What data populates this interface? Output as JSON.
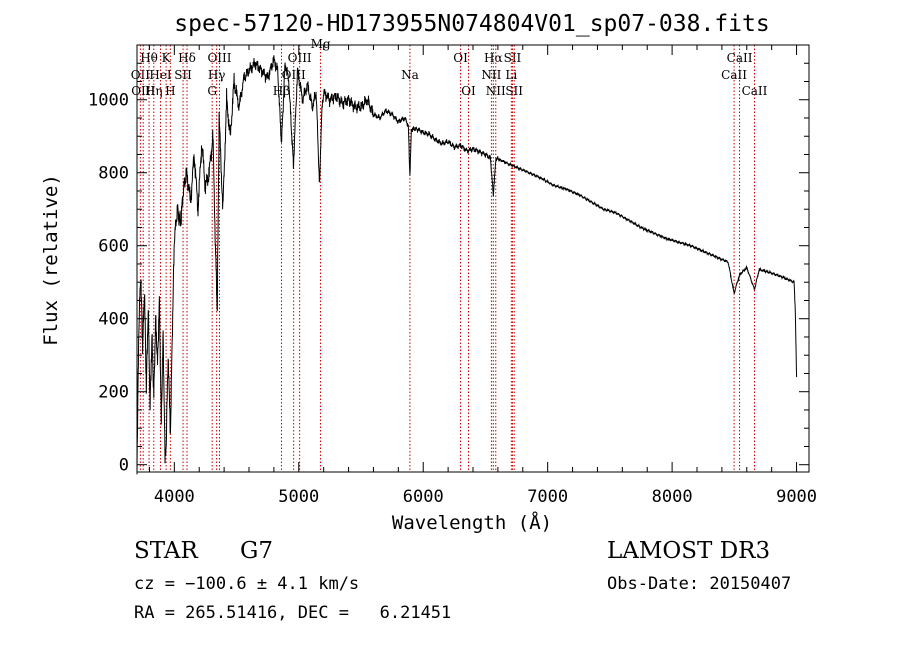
{
  "chart_data": {
    "type": "line",
    "title": "spec-57120-HD173955N074804V01_sp07-038.fits",
    "xlabel": "Wavelength (Å)",
    "ylabel": "Flux (relative)",
    "xlim": [
      3700,
      9100
    ],
    "ylim": [
      -20,
      1150
    ],
    "xticks": [
      4000,
      5000,
      6000,
      7000,
      8000,
      9000
    ],
    "yticks": [
      0,
      200,
      400,
      600,
      800,
      1000
    ],
    "grid": false,
    "legend": "none",
    "series": [
      {
        "name": "spectrum",
        "x": [
          3700,
          3715,
          3730,
          3745,
          3760,
          3775,
          3790,
          3805,
          3820,
          3835,
          3850,
          3865,
          3880,
          3895,
          3910,
          3925,
          3935,
          3950,
          3968,
          3985,
          4000,
          4025,
          4050,
          4075,
          4100,
          4130,
          4160,
          4190,
          4220,
          4250,
          4280,
          4310,
          4330,
          4345,
          4360,
          4390,
          4420,
          4450,
          4480,
          4520,
          4560,
          4600,
          4650,
          4700,
          4750,
          4800,
          4830,
          4861,
          4890,
          4920,
          4957,
          4990,
          5030,
          5070,
          5110,
          5140,
          5167,
          5183,
          5200,
          5250,
          5300,
          5350,
          5400,
          5450,
          5500,
          5550,
          5600,
          5650,
          5700,
          5750,
          5800,
          5850,
          5880,
          5893,
          5905,
          5950,
          6000,
          6050,
          6100,
          6150,
          6200,
          6250,
          6300,
          6350,
          6400,
          6450,
          6500,
          6540,
          6563,
          6585,
          6620,
          6680,
          6750,
          6850,
          6950,
          7050,
          7150,
          7250,
          7350,
          7450,
          7550,
          7650,
          7750,
          7850,
          7950,
          8050,
          8150,
          8250,
          8350,
          8450,
          8498,
          8542,
          8600,
          8662,
          8700,
          8800,
          8900,
          8980,
          8990,
          9000
        ],
        "y": [
          0,
          380,
          520,
          320,
          480,
          210,
          430,
          160,
          350,
          190,
          400,
          280,
          450,
          120,
          360,
          20,
          60,
          300,
          80,
          380,
          620,
          700,
          660,
          760,
          800,
          720,
          850,
          700,
          880,
          760,
          800,
          900,
          600,
          420,
          950,
          700,
          1000,
          900,
          1050,
          980,
          1060,
          1080,
          1100,
          1080,
          1060,
          1110,
          1080,
          880,
          1100,
          1050,
          820,
          1080,
          1000,
          1040,
          980,
          1020,
          760,
          960,
          1020,
          1000,
          1010,
          990,
          1000,
          980,
          980,
          1000,
          960,
          950,
          970,
          960,
          940,
          950,
          930,
          790,
          920,
          920,
          910,
          905,
          890,
          880,
          885,
          870,
          875,
          860,
          865,
          858,
          850,
          840,
          740,
          840,
          835,
          825,
          815,
          800,
          785,
          765,
          755,
          740,
          720,
          700,
          690,
          670,
          650,
          635,
          620,
          610,
          600,
          585,
          570,
          555,
          470,
          520,
          540,
          480,
          535,
          525,
          512,
          500,
          420,
          240
        ]
      }
    ],
    "line_markers": [
      {
        "label": "Hθ",
        "x": 3797,
        "row": 1
      },
      {
        "label": "OII",
        "x": 3727,
        "row": 2
      },
      {
        "label": "OIII",
        "x": 3750,
        "row": 3
      },
      {
        "label": "K",
        "x": 3934,
        "row": 1
      },
      {
        "label": "HeI",
        "x": 3889,
        "row": 2
      },
      {
        "label": "Hη",
        "x": 3835,
        "row": 3
      },
      {
        "label": "Hδ",
        "x": 4102,
        "row": 1
      },
      {
        "label": "SII",
        "x": 4070,
        "row": 2
      },
      {
        "label": "H",
        "x": 3968,
        "row": 3
      },
      {
        "label": "OIII",
        "x": 4363,
        "row": 1
      },
      {
        "label": "Hγ",
        "x": 4340,
        "row": 2
      },
      {
        "label": "G",
        "x": 4304,
        "row": 3
      },
      {
        "label": "OIII",
        "x": 5007,
        "row": 1
      },
      {
        "label": "OIII",
        "x": 4959,
        "row": 2
      },
      {
        "label": "Hβ",
        "x": 4861,
        "row": 3
      },
      {
        "label": "Mg",
        "x": 5175,
        "row": 0
      },
      {
        "label": "Na",
        "x": 5893,
        "row": 2
      },
      {
        "label": "OI",
        "x": 6300,
        "row": 1
      },
      {
        "label": "OI",
        "x": 6364,
        "row": 3
      },
      {
        "label": "Hα",
        "x": 6563,
        "row": 1
      },
      {
        "label": "NII",
        "x": 6548,
        "row": 2
      },
      {
        "label": "NII",
        "x": 6583,
        "row": 3
      },
      {
        "label": "SII",
        "x": 6717,
        "row": 1
      },
      {
        "label": "Li",
        "x": 6708,
        "row": 2
      },
      {
        "label": "SII",
        "x": 6731,
        "row": 3
      },
      {
        "label": "CaII",
        "x": 8542,
        "row": 1
      },
      {
        "label": "CaII",
        "x": 8498,
        "row": 2
      },
      {
        "label": "CaII",
        "x": 8662,
        "row": 3
      }
    ],
    "colors": {
      "spectrum": "#000000",
      "marker": "#cc0000",
      "axis": "#000000"
    }
  },
  "info": {
    "class": "STAR",
    "subclass": "G7",
    "survey": "LAMOST DR3",
    "cz": "cz = −100.6 ± 4.1 km/s",
    "obs_date": "Obs-Date: 20150407",
    "radec": "RA = 265.51416, DEC =   6.21451"
  }
}
